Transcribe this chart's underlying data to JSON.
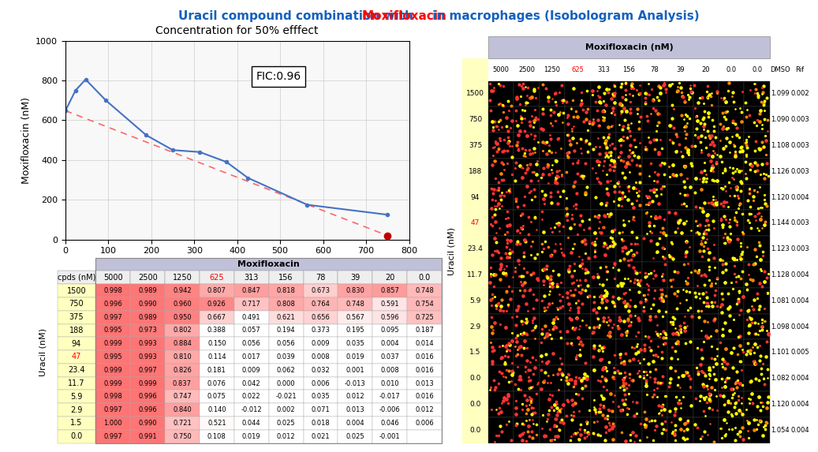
{
  "title_parts": [
    {
      "text": "Uracil compound combination with ",
      "color": "#1560BD"
    },
    {
      "text": "Moxifloxacin",
      "color": "#FF0000"
    },
    {
      "text": " in macrophages (Isobologram Analysis)",
      "color": "#1560BD"
    }
  ],
  "isobologram": {
    "subtitle": "Concentration for 50% efffect",
    "x_label": "Uracil (nM)",
    "y_label": "Moxifloxacin (nM)",
    "xlim": [
      0,
      800
    ],
    "ylim": [
      0,
      1000
    ],
    "xticks": [
      0,
      100,
      200,
      300,
      400,
      500,
      600,
      700,
      800
    ],
    "yticks": [
      0,
      200,
      400,
      600,
      800,
      1000
    ],
    "curve_x": [
      0,
      23.4,
      47,
      94,
      188,
      250,
      313,
      375,
      425,
      563,
      750
    ],
    "curve_y": [
      648,
      750,
      805,
      700,
      525,
      450,
      440,
      390,
      310,
      175,
      125
    ],
    "dot_x": 750,
    "dot_y": 20,
    "line_x": [
      0,
      750
    ],
    "line_y": [
      648,
      20
    ],
    "fic_text": "FIC:0.96",
    "curve_color": "#4472C4",
    "dot_color": "#C00000",
    "line_color": "#FF6666"
  },
  "left_table": {
    "header_text": "Moxifloxacin",
    "header_bg": "#C0C0D8",
    "col_labels": [
      "cpds (nM)",
      "5000",
      "2500",
      "1250",
      "625",
      "313",
      "156",
      "78",
      "39",
      "20",
      "0.0"
    ],
    "col_625_idx": 3,
    "row_labels": [
      "1500",
      "750",
      "375",
      "188",
      "94",
      "47",
      "23.4",
      "11.7",
      "5.9",
      "2.9",
      "1.5",
      "0.0"
    ],
    "row_47_idx": 5,
    "ylabel": "Uracil (nM)",
    "data": [
      [
        0.998,
        0.989,
        0.942,
        0.807,
        0.847,
        0.818,
        0.673,
        0.83,
        0.857,
        0.748
      ],
      [
        0.996,
        0.99,
        0.96,
        0.926,
        0.717,
        0.808,
        0.764,
        0.748,
        0.591,
        0.754
      ],
      [
        0.997,
        0.989,
        0.95,
        0.667,
        0.491,
        0.621,
        0.656,
        0.567,
        0.596,
        0.725
      ],
      [
        0.995,
        0.973,
        0.802,
        0.388,
        0.057,
        0.194,
        0.373,
        0.195,
        0.095,
        0.187
      ],
      [
        0.999,
        0.993,
        0.884,
        0.15,
        0.056,
        0.056,
        0.009,
        0.035,
        0.004,
        0.014
      ],
      [
        0.995,
        0.993,
        0.81,
        0.114,
        0.017,
        0.039,
        0.008,
        0.019,
        0.037,
        0.016
      ],
      [
        0.999,
        0.997,
        0.826,
        0.181,
        0.009,
        0.062,
        0.032,
        0.001,
        0.008,
        0.016
      ],
      [
        0.999,
        0.999,
        0.837,
        0.076,
        0.042,
        0.0,
        0.006,
        -0.013,
        0.01,
        0.013
      ],
      [
        0.998,
        0.996,
        0.747,
        0.075,
        0.022,
        -0.021,
        0.035,
        0.012,
        -0.017,
        0.016
      ],
      [
        0.997,
        0.996,
        0.84,
        0.14,
        -0.012,
        0.002,
        0.071,
        0.013,
        -0.006,
        0.012
      ],
      [
        1.0,
        0.99,
        0.721,
        0.521,
        0.044,
        0.025,
        0.018,
        0.004,
        0.046,
        0.006
      ],
      [
        0.997,
        0.991,
        0.75,
        0.108,
        0.019,
        0.012,
        0.021,
        0.025,
        -0.001,
        null
      ]
    ],
    "row_label_bg": "#FFFFC0"
  },
  "right_panel": {
    "img_col_names": [
      "5000",
      "2500",
      "1250",
      "625",
      "313",
      "156",
      "78",
      "39",
      "20",
      "0.0",
      "0.0"
    ],
    "extra_col_names": [
      "DMSO",
      "Rif"
    ],
    "row_labels": [
      "1500",
      "750",
      "375",
      "188",
      "94",
      "47",
      "23.4",
      "11.7",
      "5.9",
      "2.9",
      "1.5",
      "0.0",
      "0.0",
      "0.0"
    ],
    "row_47_label": "47",
    "right_values": [
      [
        1.099,
        0.002
      ],
      [
        1.09,
        0.003
      ],
      [
        1.108,
        0.003
      ],
      [
        1.126,
        0.003
      ],
      [
        1.12,
        0.004
      ],
      [
        1.144,
        0.003
      ],
      [
        1.123,
        0.003
      ],
      [
        1.128,
        0.004
      ],
      [
        1.081,
        0.004
      ],
      [
        1.098,
        0.004
      ],
      [
        1.101,
        0.005
      ],
      [
        1.082,
        0.004
      ],
      [
        1.12,
        0.004
      ],
      [
        1.054,
        0.004
      ]
    ],
    "header_text": "Moxifloxacin (nM)",
    "header_bg": "#C0C0D8",
    "ylabel": "Uracil (nM)",
    "row_label_bg": "#FFFFC0"
  },
  "background_color": "#FFFFFF"
}
